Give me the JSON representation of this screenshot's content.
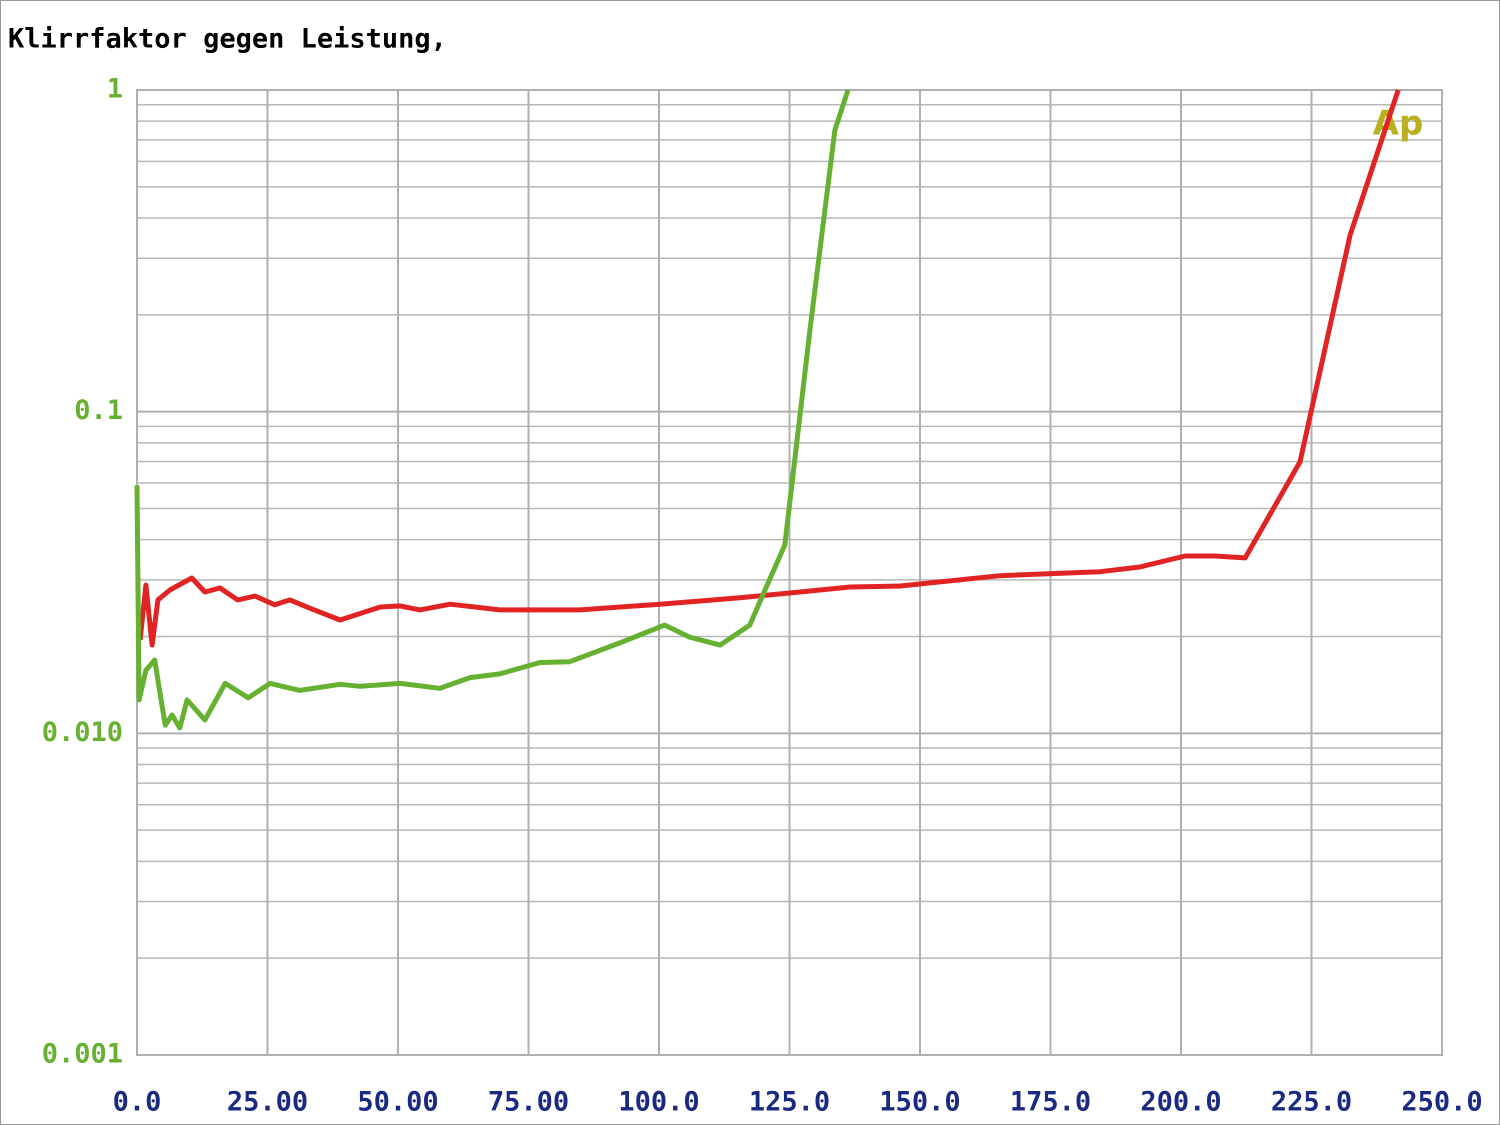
{
  "chart_data": {
    "type": "line",
    "title": "Klirrfaktor gegen Leistung,",
    "annotation": "Ap",
    "log_y": true,
    "grid": true,
    "minor_grid": true,
    "xlim": [
      0,
      250
    ],
    "xticks": [
      {
        "value": 0,
        "label": "0.0"
      },
      {
        "value": 25,
        "label": "25.00"
      },
      {
        "value": 50,
        "label": "50.00"
      },
      {
        "value": 75,
        "label": "75.00"
      },
      {
        "value": 100,
        "label": "100.0"
      },
      {
        "value": 125,
        "label": "125.0"
      },
      {
        "value": 150,
        "label": "150.0"
      },
      {
        "value": 175,
        "label": "175.0"
      },
      {
        "value": 200,
        "label": "200.0"
      },
      {
        "value": 225,
        "label": "225.0"
      },
      {
        "value": 250,
        "label": "250.0"
      }
    ],
    "ylim": [
      0.001,
      1
    ],
    "yticks": [
      0.001,
      {
        "value": 0.01,
        "label": "0.010"
      },
      0.1,
      1
    ],
    "series": [
      {
        "color": "#e02424",
        "x": [
          0.6,
          1.7,
          2.9,
          4.0,
          6.3,
          10.5,
          13,
          15.9,
          19.3,
          22.6,
          26.4,
          29.3,
          33.1,
          38.9,
          46.6,
          50.4,
          54.2,
          60,
          69.5,
          84.9,
          100.2,
          115.5,
          127,
          136.6,
          146.2,
          165.3,
          184.5,
          192.1,
          200.8,
          206.5,
          212.3,
          222.8,
          232.4,
          241.6
        ],
        "values": [
          0.0195,
          0.0289,
          0.0188,
          0.026,
          0.0279,
          0.0304,
          0.0275,
          0.0283,
          0.026,
          0.0267,
          0.0251,
          0.026,
          0.0245,
          0.0225,
          0.0247,
          0.0249,
          0.0242,
          0.0252,
          0.0242,
          0.0242,
          0.0252,
          0.0264,
          0.0275,
          0.0285,
          0.0287,
          0.0309,
          0.0318,
          0.0329,
          0.0356,
          0.0356,
          0.0351,
          0.0698,
          0.354,
          1.0
        ]
      },
      {
        "color": "#66b032",
        "x": [
          0,
          0.4,
          1.7,
          3.4,
          5.4,
          6.7,
          8.2,
          9.6,
          13.0,
          16.9,
          21.3,
          25.5,
          31.2,
          38.9,
          42.7,
          50.4,
          58.0,
          63.8,
          69.5,
          77.2,
          82.9,
          92.5,
          101.1,
          105.9,
          111.7,
          117.4,
          120.3,
          124.1,
          128.9,
          133.7,
          136.2
        ],
        "values": [
          0.059,
          0.0127,
          0.0157,
          0.0169,
          0.0106,
          0.0114,
          0.0104,
          0.0127,
          0.011,
          0.0143,
          0.0129,
          0.0143,
          0.0136,
          0.0142,
          0.014,
          0.0143,
          0.0138,
          0.0149,
          0.0153,
          0.0166,
          0.0167,
          0.0191,
          0.0217,
          0.0199,
          0.0188,
          0.0217,
          0.0279,
          0.0385,
          0.179,
          0.751,
          1.0
        ]
      }
    ]
  }
}
